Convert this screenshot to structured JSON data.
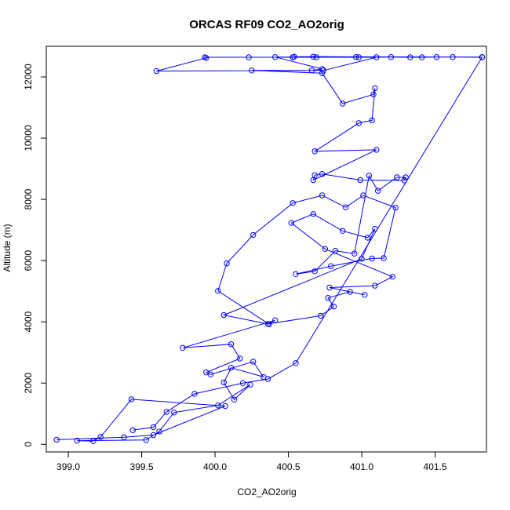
{
  "chart_data": {
    "type": "line",
    "title": "ORCAS RF09 CO2_AO2orig",
    "xlabel": "CO2_AO2orig",
    "ylabel": "Altitude (m)",
    "xlim": [
      398.85,
      401.85
    ],
    "ylim": [
      -250,
      13000
    ],
    "x_ticks": [
      399.0,
      399.5,
      400.0,
      400.5,
      401.0,
      401.5
    ],
    "x_tick_labels": [
      "399.0",
      "399.5",
      "400.0",
      "400.5",
      "401.0",
      "401.5"
    ],
    "y_ticks": [
      0,
      2000,
      4000,
      6000,
      8000,
      10000,
      12000
    ],
    "y_tick_labels": [
      "0",
      "2000",
      "4000",
      "6000",
      "8000",
      "10000",
      "12000"
    ],
    "grid": false,
    "series_color": "#0000ff",
    "series": [
      {
        "x": [
          398.92,
          399.38,
          399.58,
          400.07,
          399.43,
          399.22,
          399.17,
          399.06,
          399.53,
          399.62,
          399.72,
          400.02,
          400.24,
          400.13,
          400.06,
          400.11,
          400.33,
          400.26,
          399.97,
          399.94,
          400.17,
          400.11,
          399.78,
          400.41,
          400.36,
          400.72,
          400.81,
          400.77,
          400.92,
          401.02,
          400.78,
          401.09,
          401.21,
          400.75,
          400.52,
          400.67,
          400.87,
          401.04,
          401.09,
          401.0,
          400.06,
          400.37,
          400.02,
          400.08,
          400.26,
          400.53,
          400.73,
          400.89,
          401.01,
          401.23,
          401.15,
          401.07,
          400.79,
          400.55,
          400.68,
          400.82,
          400.95,
          401.05,
          401.11,
          401.24,
          401.3,
          401.29,
          400.99,
          400.73,
          400.68,
          400.67,
          401.1,
          400.68,
          400.98,
          401.07,
          401.09,
          401.08,
          400.87,
          400.73,
          400.25,
          400.74,
          401.1,
          400.69,
          400.23,
          399.93,
          399.94,
          399.6,
          400.66,
          400.73,
          400.41,
          401.82,
          400.54,
          400.53,
          400.67,
          400.96,
          400.98,
          401.2,
          401.33,
          401.41,
          401.51,
          401.62,
          401.82,
          400.55,
          400.36,
          400.19,
          399.86,
          399.67,
          399.58,
          399.44
        ],
        "y": [
          150,
          230,
          300,
          1250,
          1470,
          240,
          100,
          120,
          140,
          420,
          1040,
          1270,
          1950,
          1460,
          2020,
          2500,
          2200,
          2700,
          2280,
          2350,
          2800,
          3270,
          3150,
          4050,
          3930,
          4200,
          4500,
          4780,
          4980,
          4880,
          5120,
          5180,
          5470,
          6380,
          7230,
          7520,
          6970,
          6750,
          7040,
          6060,
          4220,
          3920,
          5010,
          5910,
          6840,
          7880,
          8130,
          7740,
          8130,
          7730,
          6080,
          6070,
          5820,
          5560,
          5650,
          6320,
          6230,
          8770,
          8280,
          8720,
          8720,
          8620,
          8630,
          8830,
          8790,
          8630,
          9620,
          9570,
          10490,
          10580,
          11630,
          11430,
          11130,
          12120,
          12210,
          12210,
          12640,
          12640,
          12640,
          12640,
          12620,
          12190,
          12210,
          12260,
          12650,
          12650,
          12660,
          12640,
          12660,
          12650,
          12640,
          12650,
          12640,
          12640,
          12650,
          12650,
          12640,
          2650,
          2130,
          2000,
          1650,
          1060,
          560,
          460
        ]
      }
    ]
  }
}
